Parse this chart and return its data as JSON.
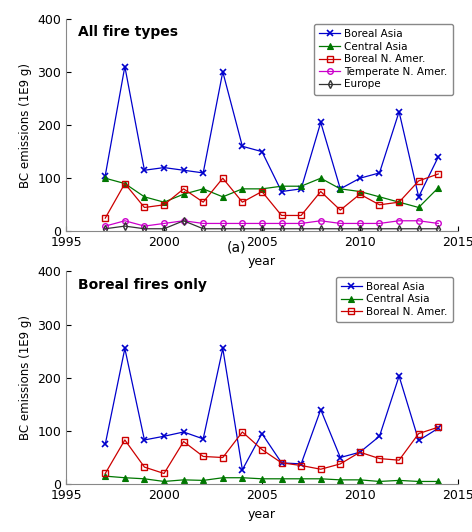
{
  "top": {
    "title": "All fire types",
    "ylabel": "BC emissions (1E9 g)",
    "xlabel": "year",
    "xlim": [
      1995,
      2015
    ],
    "ylim": [
      0,
      400
    ],
    "yticks": [
      0,
      100,
      200,
      300,
      400
    ],
    "series": [
      {
        "label": "Boreal Asia",
        "color": "#0000cc",
        "marker": "x",
        "years": [
          1997,
          1998,
          1999,
          2000,
          2001,
          2002,
          2003,
          2004,
          2005,
          2006,
          2007,
          2008,
          2009,
          2010,
          2011,
          2012,
          2013,
          2014
        ],
        "values": [
          105,
          310,
          115,
          120,
          115,
          110,
          300,
          160,
          150,
          75,
          80,
          205,
          80,
          100,
          110,
          225,
          65,
          140
        ]
      },
      {
        "label": "Central Asia",
        "color": "#007700",
        "marker": "^",
        "years": [
          1997,
          1998,
          1999,
          2000,
          2001,
          2002,
          2003,
          2004,
          2005,
          2006,
          2007,
          2008,
          2009,
          2010,
          2011,
          2012,
          2013,
          2014
        ],
        "values": [
          100,
          90,
          65,
          55,
          70,
          80,
          65,
          80,
          80,
          85,
          85,
          100,
          80,
          75,
          65,
          55,
          45,
          82
        ]
      },
      {
        "label": "Boreal N. Amer.",
        "color": "#cc0000",
        "marker": "s",
        "years": [
          1997,
          1998,
          1999,
          2000,
          2001,
          2002,
          2003,
          2004,
          2005,
          2006,
          2007,
          2008,
          2009,
          2010,
          2011,
          2012,
          2013,
          2014
        ],
        "values": [
          25,
          90,
          45,
          50,
          80,
          55,
          100,
          55,
          75,
          30,
          30,
          75,
          40,
          70,
          50,
          55,
          95,
          108
        ]
      },
      {
        "label": "Temperate N. Amer.",
        "color": "#cc00cc",
        "marker": "o",
        "years": [
          1997,
          1998,
          1999,
          2000,
          2001,
          2002,
          2003,
          2004,
          2005,
          2006,
          2007,
          2008,
          2009,
          2010,
          2011,
          2012,
          2013,
          2014
        ],
        "values": [
          10,
          20,
          10,
          15,
          20,
          15,
          15,
          15,
          15,
          15,
          15,
          20,
          15,
          15,
          15,
          20,
          20,
          15
        ]
      },
      {
        "label": "Europe",
        "color": "#333333",
        "marker": "d",
        "years": [
          1997,
          1998,
          1999,
          2000,
          2001,
          2002,
          2003,
          2004,
          2005,
          2006,
          2007,
          2008,
          2009,
          2010,
          2011,
          2012,
          2013,
          2014
        ],
        "values": [
          5,
          10,
          5,
          5,
          20,
          5,
          5,
          5,
          5,
          5,
          5,
          5,
          5,
          5,
          5,
          5,
          5,
          5
        ]
      }
    ]
  },
  "bottom": {
    "title": "Boreal fires only",
    "ylabel": "BC emissions (1E9 g)",
    "xlabel": "year",
    "xlim": [
      1995,
      2015
    ],
    "ylim": [
      0,
      400
    ],
    "yticks": [
      0,
      100,
      200,
      300,
      400
    ],
    "series": [
      {
        "label": "Boreal Asia",
        "color": "#0000cc",
        "marker": "x",
        "years": [
          1997,
          1998,
          1999,
          2000,
          2001,
          2002,
          2003,
          2004,
          2005,
          2006,
          2007,
          2008,
          2009,
          2010,
          2011,
          2012,
          2013,
          2014
        ],
        "values": [
          75,
          255,
          83,
          90,
          98,
          85,
          255,
          27,
          95,
          40,
          38,
          140,
          50,
          60,
          90,
          203,
          82,
          105
        ]
      },
      {
        "label": "Central Asia",
        "color": "#007700",
        "marker": "^",
        "years": [
          1997,
          1998,
          1999,
          2000,
          2001,
          2002,
          2003,
          2004,
          2005,
          2006,
          2007,
          2008,
          2009,
          2010,
          2011,
          2012,
          2013,
          2014
        ],
        "values": [
          15,
          12,
          10,
          5,
          8,
          7,
          12,
          12,
          10,
          10,
          10,
          10,
          8,
          8,
          5,
          7,
          5,
          5
        ]
      },
      {
        "label": "Boreal N. Amer.",
        "color": "#cc0000",
        "marker": "s",
        "years": [
          1997,
          1998,
          1999,
          2000,
          2001,
          2002,
          2003,
          2004,
          2005,
          2006,
          2007,
          2008,
          2009,
          2010,
          2011,
          2012,
          2013,
          2014
        ],
        "values": [
          20,
          83,
          32,
          20,
          80,
          52,
          50,
          98,
          65,
          40,
          35,
          28,
          38,
          60,
          48,
          45,
          95,
          107
        ]
      }
    ]
  },
  "subplot_label": "(a)",
  "fig_width": 4.72,
  "fig_height": 5.32,
  "dpi": 100
}
